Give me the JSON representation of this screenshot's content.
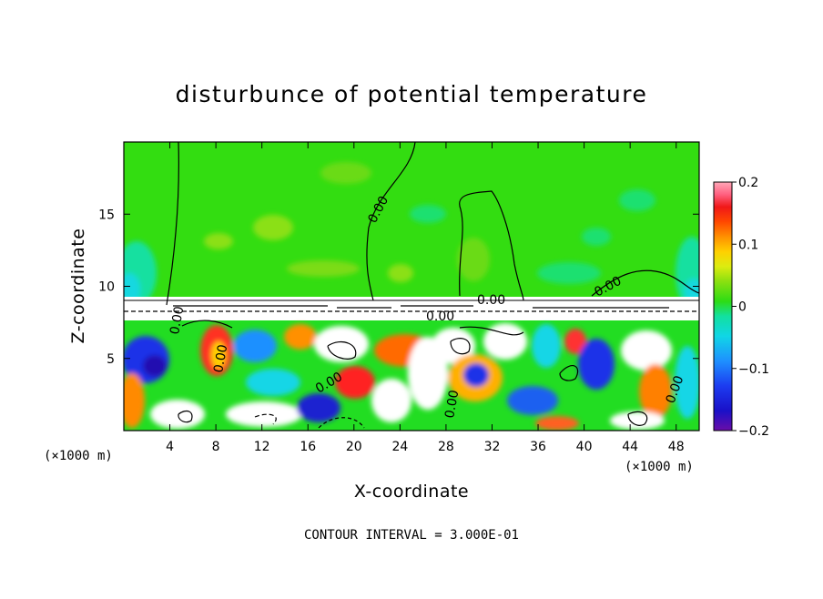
{
  "chart_data": {
    "type": "heatmap",
    "title": "disturbunce of potential temperature",
    "xlabel": "X-coordinate",
    "ylabel": "Z-coordinate",
    "x_unit": "(×1000 m)",
    "z_unit": "(×1000 m)",
    "xlim": [
      0,
      50
    ],
    "ylim": [
      0,
      20
    ],
    "x_ticks": [
      4,
      8,
      12,
      16,
      20,
      24,
      28,
      32,
      36,
      40,
      44,
      48
    ],
    "y_ticks": [
      5,
      10,
      15
    ],
    "colorbar": {
      "range": [
        -0.2,
        0.2
      ],
      "ticks": [
        0.2,
        0.1,
        0,
        -0.1,
        -0.2
      ],
      "tick_labels": [
        "0.2",
        "0.1",
        "0",
        "−0.1",
        "−0.2"
      ]
    },
    "contour_interval_text": "CONTOUR INTERVAL = 3.000E-01",
    "contour_labels": [
      "0.00",
      "0.00",
      "0.00",
      "0.00",
      "0.00",
      "0.00",
      "0.00",
      "0.00",
      "0.00"
    ],
    "colors": {
      "upper_background": "#33dd11",
      "frame": "#000000"
    }
  }
}
